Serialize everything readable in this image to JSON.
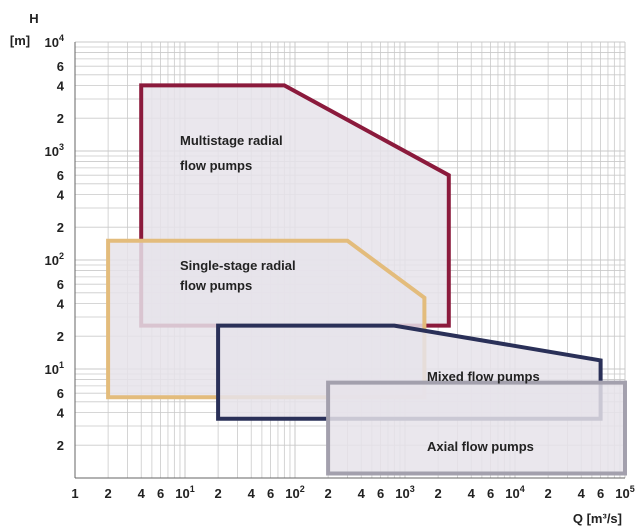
{
  "chart_data": {
    "type": "area",
    "x_scale": "log",
    "y_scale": "log",
    "xlim": [
      1,
      100000
    ],
    "ylim": [
      1,
      10000
    ],
    "grid": true,
    "xlabel": "Q [m³/s]",
    "ylabel_line1": "H",
    "ylabel_line2": "[m]",
    "x_ticks": [
      {
        "v": 1,
        "base": "1",
        "exp": ""
      },
      {
        "v": 2,
        "base": "2",
        "exp": ""
      },
      {
        "v": 4,
        "base": "4",
        "exp": ""
      },
      {
        "v": 6,
        "base": "6",
        "exp": ""
      },
      {
        "v": 10,
        "base": "10",
        "exp": "1"
      },
      {
        "v": 20,
        "base": "2",
        "exp": ""
      },
      {
        "v": 40,
        "base": "4",
        "exp": ""
      },
      {
        "v": 60,
        "base": "6",
        "exp": ""
      },
      {
        "v": 100,
        "base": "10",
        "exp": "2"
      },
      {
        "v": 200,
        "base": "2",
        "exp": ""
      },
      {
        "v": 400,
        "base": "4",
        "exp": ""
      },
      {
        "v": 600,
        "base": "6",
        "exp": ""
      },
      {
        "v": 1000,
        "base": "10",
        "exp": "3"
      },
      {
        "v": 2000,
        "base": "2",
        "exp": ""
      },
      {
        "v": 4000,
        "base": "4",
        "exp": ""
      },
      {
        "v": 6000,
        "base": "6",
        "exp": ""
      },
      {
        "v": 10000,
        "base": "10",
        "exp": "4"
      },
      {
        "v": 20000,
        "base": "2",
        "exp": ""
      },
      {
        "v": 40000,
        "base": "4",
        "exp": ""
      },
      {
        "v": 60000,
        "base": "6",
        "exp": ""
      },
      {
        "v": 100000,
        "base": "10",
        "exp": "5"
      }
    ],
    "y_ticks": [
      {
        "v": 2,
        "base": "2",
        "exp": ""
      },
      {
        "v": 4,
        "base": "4",
        "exp": ""
      },
      {
        "v": 6,
        "base": "6",
        "exp": ""
      },
      {
        "v": 10,
        "base": "10",
        "exp": "1"
      },
      {
        "v": 20,
        "base": "2",
        "exp": ""
      },
      {
        "v": 40,
        "base": "4",
        "exp": ""
      },
      {
        "v": 60,
        "base": "6",
        "exp": ""
      },
      {
        "v": 100,
        "base": "10",
        "exp": "2"
      },
      {
        "v": 200,
        "base": "2",
        "exp": ""
      },
      {
        "v": 400,
        "base": "4",
        "exp": ""
      },
      {
        "v": 600,
        "base": "6",
        "exp": ""
      },
      {
        "v": 1000,
        "base": "10",
        "exp": "3"
      },
      {
        "v": 2000,
        "base": "2",
        "exp": ""
      },
      {
        "v": 4000,
        "base": "4",
        "exp": ""
      },
      {
        "v": 6000,
        "base": "6",
        "exp": ""
      },
      {
        "v": 10000,
        "base": "10",
        "exp": "4"
      }
    ],
    "regions": [
      {
        "id": "multistage",
        "label_lines": [
          "Multistage radial",
          "flow pumps"
        ],
        "color": "#8b1a3c",
        "fill": "#e6e3ea",
        "points": [
          [
            4,
            4000
          ],
          [
            80,
            4000
          ],
          [
            2500,
            600
          ],
          [
            2500,
            25
          ],
          [
            4,
            25
          ]
        ]
      },
      {
        "id": "single-stage",
        "label_lines": [
          "Single-stage radial",
          "flow pumps"
        ],
        "color": "#e3bc7c",
        "fill": "#e6e3ea",
        "points": [
          [
            2,
            150
          ],
          [
            300,
            150
          ],
          [
            1500,
            45
          ],
          [
            1500,
            5.5
          ],
          [
            2,
            5.5
          ]
        ]
      },
      {
        "id": "mixed-flow",
        "label_lines": [
          "Mixed flow pumps"
        ],
        "color": "#2a3058",
        "fill": "#e6e3ea",
        "points": [
          [
            20,
            25
          ],
          [
            800,
            25
          ],
          [
            60000,
            12
          ],
          [
            60000,
            3.5
          ],
          [
            20,
            3.5
          ]
        ]
      },
      {
        "id": "axial-flow",
        "label_lines": [
          "Axial flow pumps"
        ],
        "color": "#a3a0ad",
        "fill": "#e6e3ea",
        "points": [
          [
            200,
            7.5
          ],
          [
            120000,
            7.5
          ],
          [
            120000,
            1.1
          ],
          [
            200,
            1.1
          ]
        ]
      }
    ]
  }
}
